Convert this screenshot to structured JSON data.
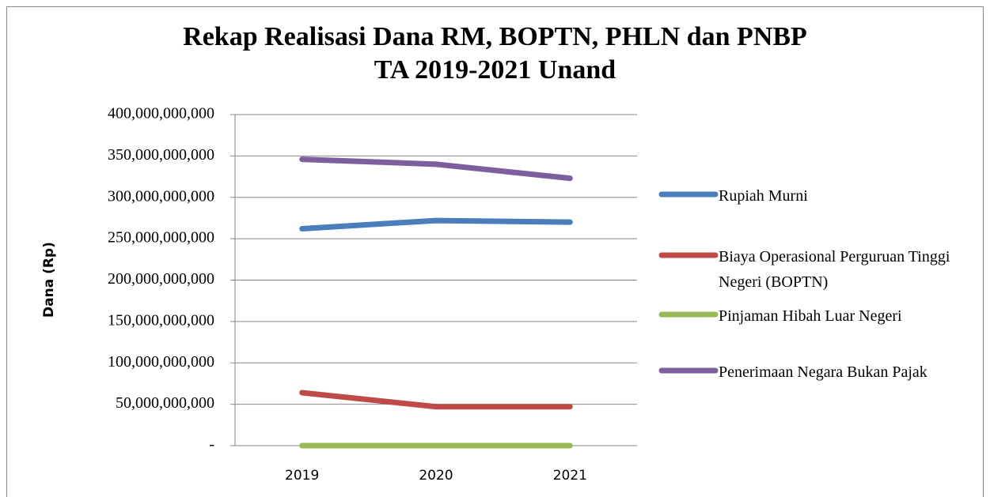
{
  "chart_data": {
    "type": "line",
    "title": "Rekap Realisasi Dana RM, BOPTN, PHLN dan PNBP\nTA 2019-2021 Unand",
    "ylabel": "Dana (Rp)",
    "categories": [
      "2019",
      "2020",
      "2021"
    ],
    "series": [
      {
        "name": "Rupiah Murni",
        "color": "#4a7ebb",
        "values": [
          262000000000,
          272000000000,
          270000000000
        ]
      },
      {
        "name": "Biaya Operasional Perguruan Tinggi Negeri (BOPTN)",
        "color": "#be4b48",
        "values": [
          64000000000,
          47000000000,
          47000000000
        ]
      },
      {
        "name": "Pinjaman Hibah Luar Negeri",
        "color": "#98b954",
        "values": [
          0,
          0,
          0
        ]
      },
      {
        "name": "Penerimaan Negara Bukan Pajak",
        "color": "#7d5fa0",
        "values": [
          346000000000,
          340000000000,
          323000000000
        ]
      }
    ],
    "ylim": [
      0,
      400000000000
    ],
    "yticks": [
      {
        "value": 0,
        "label": "-"
      },
      {
        "value": 50000000000,
        "label": "50,000,000,000"
      },
      {
        "value": 100000000000,
        "label": "100,000,000,000"
      },
      {
        "value": 150000000000,
        "label": "150,000,000,000"
      },
      {
        "value": 200000000000,
        "label": "200,000,000,000"
      },
      {
        "value": 250000000000,
        "label": "250,000,000,000"
      },
      {
        "value": 300000000000,
        "label": "300,000,000,000"
      },
      {
        "value": 350000000000,
        "label": "350,000,000,000"
      },
      {
        "value": 400000000000,
        "label": "400,000,000,000"
      }
    ],
    "grid": true,
    "legend": "right"
  }
}
